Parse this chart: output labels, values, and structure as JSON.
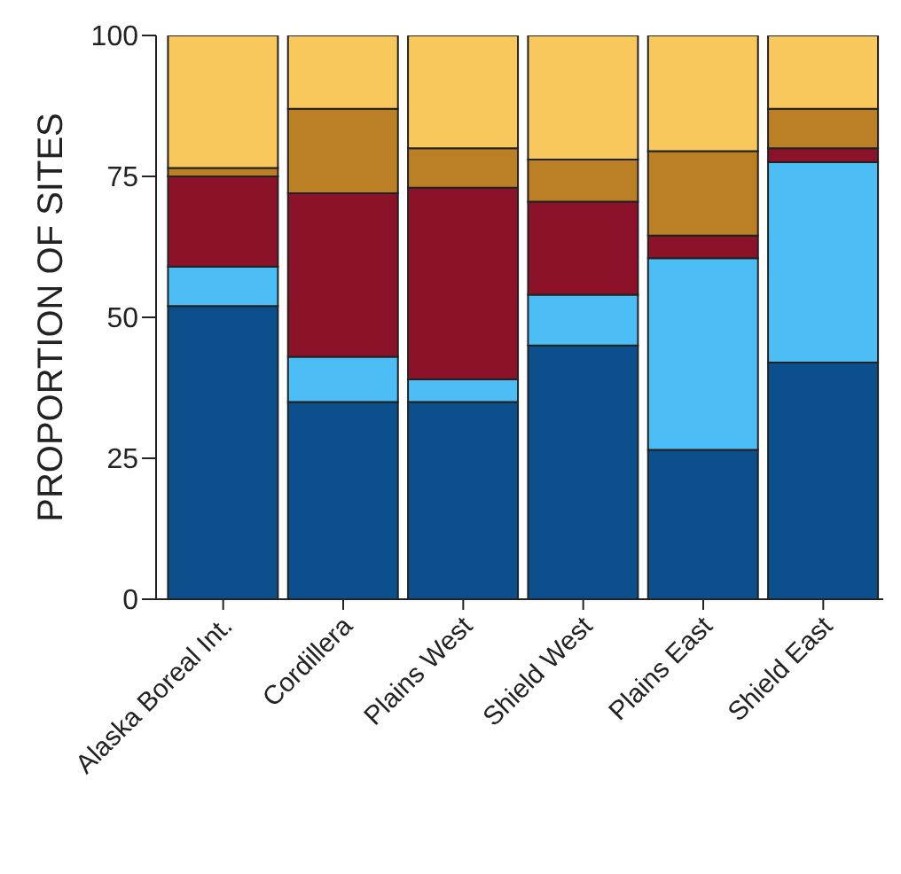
{
  "chart_data": {
    "type": "bar",
    "stacked": true,
    "ylabel": "PROPORTION OF SITES",
    "categories": [
      "Alaska Boreal Int.",
      "Cordillera",
      "Plains West",
      "Shield West",
      "Plains East",
      "Shield East"
    ],
    "series": [
      {
        "color": "#0b4f8c",
        "values": [
          52,
          35,
          35,
          45,
          26.5,
          42
        ]
      },
      {
        "color": "#4dbdf5",
        "values": [
          7,
          8,
          4,
          9,
          34,
          35.5
        ]
      },
      {
        "color": "#8b1228",
        "values": [
          16,
          29,
          34,
          16.5,
          4,
          2.5
        ]
      },
      {
        "color": "#bb8026",
        "values": [
          1.5,
          15,
          7,
          7.5,
          15,
          7
        ]
      },
      {
        "color": "#f9c85c",
        "values": [
          23.5,
          13,
          20,
          22,
          20.5,
          13
        ]
      }
    ],
    "ylim": [
      0,
      100
    ],
    "yticks": [
      0,
      25,
      50,
      75,
      100
    ],
    "grid": false,
    "legend": false
  }
}
